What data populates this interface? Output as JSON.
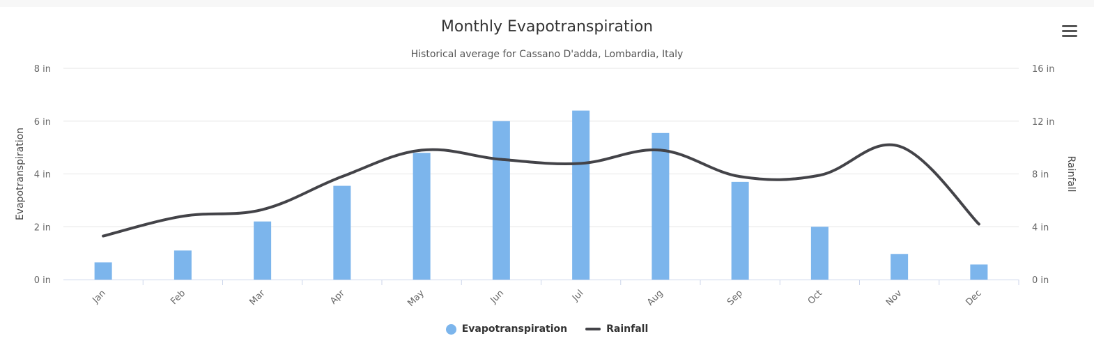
{
  "title": "Monthly Evapotranspiration",
  "subtitle": "Historical average for Cassano D'adda, Lombardia, Italy",
  "menu": {
    "icon": "hamburger-menu-icon"
  },
  "colors": {
    "bar": "#7cb5ec",
    "line": "#434348",
    "grid": "#e6e6e6",
    "axis": "#ccd6eb",
    "text": "#666666"
  },
  "chart_data": {
    "type": "bar",
    "categories": [
      "Jan",
      "Feb",
      "Mar",
      "Apr",
      "May",
      "Jun",
      "Jul",
      "Aug",
      "Sep",
      "Oct",
      "Nov",
      "Dec"
    ],
    "series": [
      {
        "name": "Evapotranspiration",
        "type": "bar",
        "axis": "left",
        "values": [
          0.65,
          1.1,
          2.2,
          3.55,
          4.8,
          6.0,
          6.4,
          5.55,
          3.7,
          2.0,
          0.97,
          0.57
        ]
      },
      {
        "name": "Rainfall",
        "type": "line",
        "smooth": true,
        "axis": "right",
        "values": [
          3.3,
          4.8,
          5.3,
          7.8,
          9.8,
          9.1,
          8.8,
          9.8,
          7.8,
          7.9,
          10.1,
          4.2
        ]
      }
    ],
    "y_left": {
      "label": "Evapotranspiration",
      "ylim": [
        0,
        8
      ],
      "ticks": [
        "0 in",
        "2 in",
        "4 in",
        "6 in",
        "8 in"
      ]
    },
    "y_right": {
      "label": "Rainfall",
      "ylim": [
        0,
        16
      ],
      "ticks": [
        "0 in",
        "4 in",
        "8 in",
        "12 in",
        "16 in"
      ]
    },
    "grid": true,
    "legend": "bottom-center"
  }
}
